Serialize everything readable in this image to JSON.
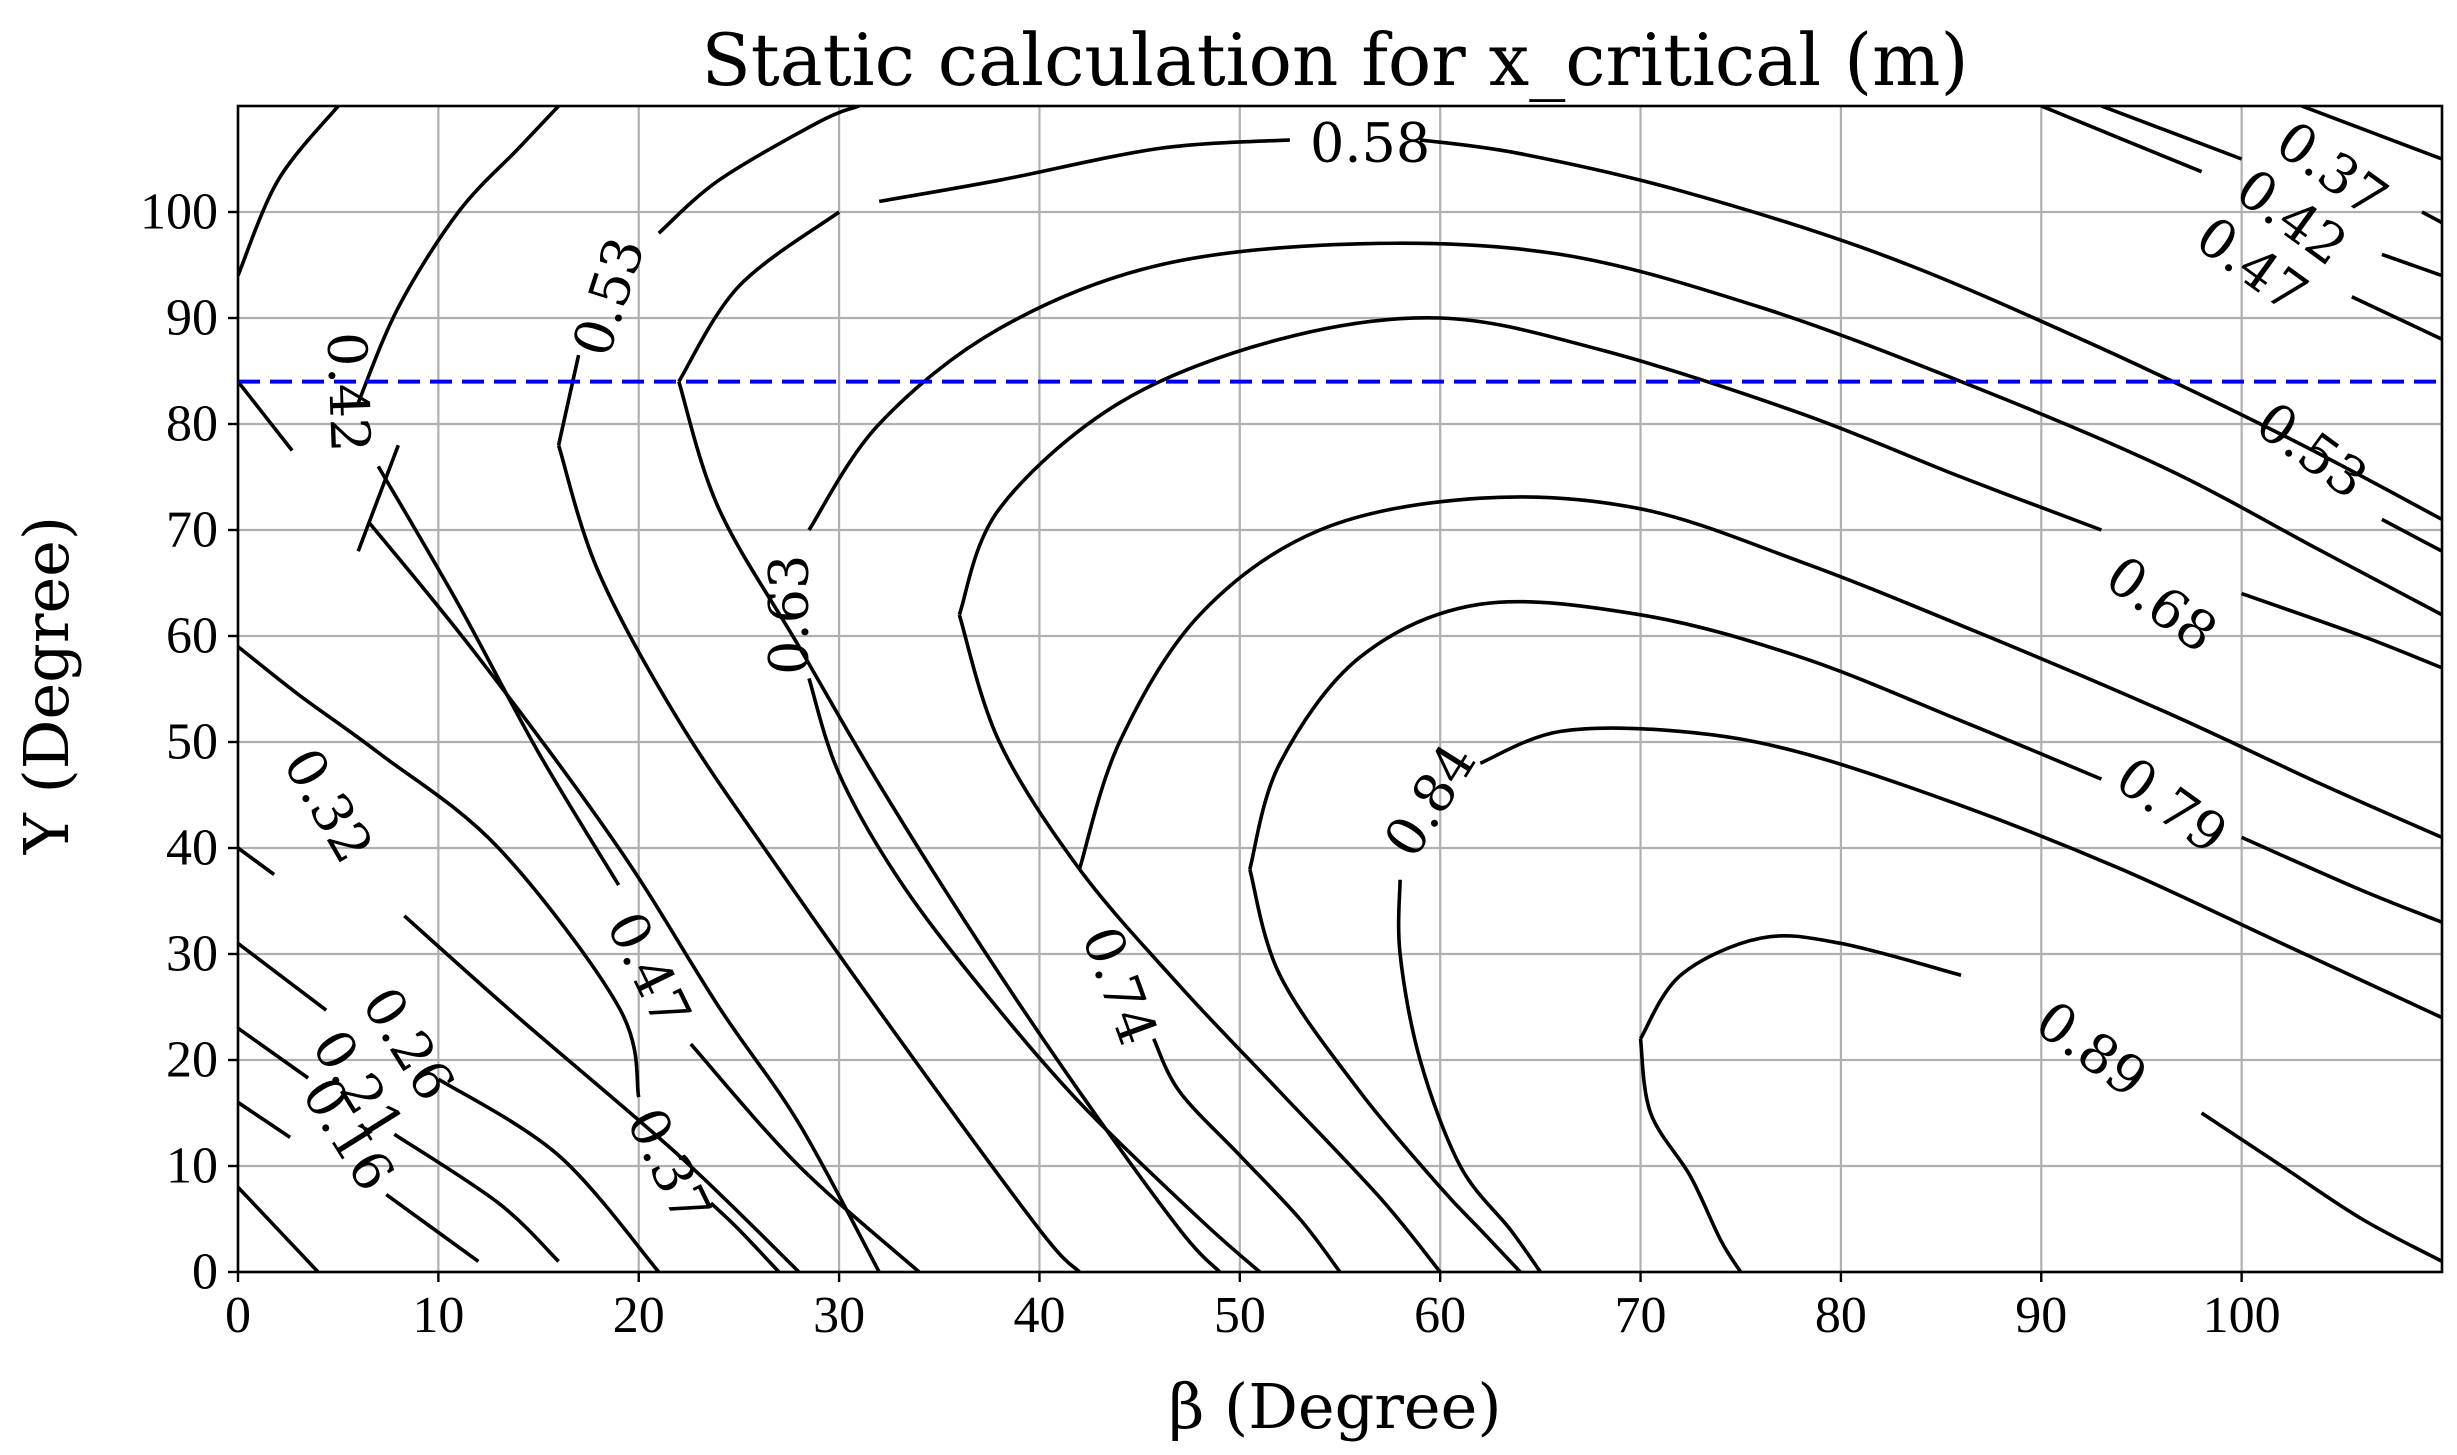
{
  "chart_data": {
    "type": "contour",
    "title": "Static calculation for x_critical (m)",
    "xlabel": "β (Degree)",
    "ylabel": "Υ (Degree)",
    "xlim": [
      0,
      110
    ],
    "ylim": [
      0,
      110
    ],
    "xticks": [
      0,
      10,
      20,
      30,
      40,
      50,
      60,
      70,
      80,
      90,
      100
    ],
    "yticks": [
      0,
      10,
      20,
      30,
      40,
      50,
      60,
      70,
      80,
      90,
      100
    ],
    "grid": true,
    "reference_line": {
      "orientation": "horizontal",
      "y": 84,
      "style": "dashed",
      "color": "#0000ee"
    },
    "contour_labels": [
      {
        "text": "0.58",
        "x": 56.5,
        "y": 106.5,
        "rotation": 0
      },
      {
        "text": "0.53",
        "x": 18.5,
        "y": 92,
        "rotation": -72
      },
      {
        "text": "0.42",
        "x": 5.5,
        "y": 83,
        "rotation": 88
      },
      {
        "text": "0.63",
        "x": 27.5,
        "y": 62,
        "rotation": -90
      },
      {
        "text": "0.37",
        "x": 104.5,
        "y": 104,
        "rotation": 36
      },
      {
        "text": "0.42",
        "x": 102.5,
        "y": 99.5,
        "rotation": 36
      },
      {
        "text": "0.47",
        "x": 100.5,
        "y": 95,
        "rotation": 36
      },
      {
        "text": "0.53",
        "x": 103.5,
        "y": 77.5,
        "rotation": 36
      },
      {
        "text": "0.68",
        "x": 96,
        "y": 63,
        "rotation": 36
      },
      {
        "text": "0.79",
        "x": 96.5,
        "y": 44,
        "rotation": 36
      },
      {
        "text": "0.84",
        "x": 59.5,
        "y": 44.5,
        "rotation": -58
      },
      {
        "text": "0.89",
        "x": 92.5,
        "y": 21,
        "rotation": 36
      },
      {
        "text": "0.74",
        "x": 44,
        "y": 27,
        "rotation": 70
      },
      {
        "text": "0.47",
        "x": 20.5,
        "y": 28.5,
        "rotation": 64
      },
      {
        "text": "0.37",
        "x": 21.5,
        "y": 10,
        "rotation": 64
      },
      {
        "text": "0.32",
        "x": 4.5,
        "y": 44,
        "rotation": 60
      },
      {
        "text": "0.26",
        "x": 8.5,
        "y": 21.5,
        "rotation": 58
      },
      {
        "text": "0.21",
        "x": 6,
        "y": 17.5,
        "rotation": 58
      },
      {
        "text": "0.16",
        "x": 5.5,
        "y": 13,
        "rotation": 58
      }
    ],
    "contours": [
      {
        "level": "0.16",
        "points": [
          [
            0,
            8
          ],
          [
            4,
            0
          ]
        ]
      },
      {
        "level": "0.16",
        "points": [
          [
            0,
            16
          ],
          [
            2.6,
            12.7
          ]
        ]
      },
      {
        "level": "0.16",
        "points": [
          [
            7.4,
            7.3
          ],
          [
            12,
            1
          ]
        ]
      },
      {
        "level": "0.21",
        "points": [
          [
            0,
            23
          ],
          [
            3.5,
            18.3
          ]
        ]
      },
      {
        "level": "0.21",
        "points": [
          [
            7.8,
            13
          ],
          [
            13,
            6.5
          ],
          [
            16,
            1
          ]
        ]
      },
      {
        "level": "0.26",
        "points": [
          [
            0,
            31
          ],
          [
            4.4,
            24.7
          ]
        ]
      },
      {
        "level": "0.26",
        "points": [
          [
            10,
            18.2
          ],
          [
            16,
            11
          ],
          [
            21,
            0
          ]
        ]
      },
      {
        "level": "0.32",
        "points": [
          [
            0,
            40
          ],
          [
            1.8,
            37.5
          ]
        ]
      },
      {
        "level": "0.32",
        "points": [
          [
            8.3,
            33.6
          ],
          [
            14,
            24
          ],
          [
            22,
            11
          ],
          [
            28,
            0
          ]
        ]
      },
      {
        "level": "0.37",
        "points": [
          [
            0,
            59
          ],
          [
            3,
            54.5
          ],
          [
            7,
            49
          ],
          [
            13,
            40
          ],
          [
            19,
            25
          ],
          [
            20,
            16.5
          ]
        ]
      },
      {
        "level": "0.37",
        "points": [
          [
            23.6,
            6.5
          ],
          [
            25,
            4
          ],
          [
            27,
            0
          ]
        ]
      },
      {
        "level": "0.42",
        "points": [
          [
            0,
            94
          ],
          [
            2,
            103
          ],
          [
            5,
            110
          ]
        ]
      },
      {
        "level": "0.42",
        "points": [
          [
            0,
            84
          ],
          [
            2.7,
            77.5
          ]
        ]
      },
      {
        "level": "0.42",
        "points": [
          [
            6.5,
            70.8
          ],
          [
            12,
            58
          ],
          [
            19,
            40
          ],
          [
            24,
            25
          ],
          [
            28,
            14
          ],
          [
            32,
            0
          ]
        ]
      },
      {
        "level": "0.47",
        "points": [
          [
            6,
            82
          ],
          [
            8,
            91
          ],
          [
            11,
            100
          ],
          [
            14,
            106
          ],
          [
            16,
            110
          ]
        ]
      },
      {
        "level": "0.47",
        "points": [
          [
            6,
            68
          ],
          [
            8,
            78
          ]
        ]
      },
      {
        "level": "0.47",
        "points": [
          [
            7,
            76
          ],
          [
            11,
            63
          ],
          [
            15,
            49
          ],
          [
            19,
            36.5
          ]
        ]
      },
      {
        "level": "0.47",
        "points": [
          [
            22.6,
            21.5
          ],
          [
            28,
            10
          ],
          [
            34,
            0
          ]
        ]
      },
      {
        "level": "0.53",
        "points": [
          [
            16,
            78
          ],
          [
            17,
            86.5
          ]
        ]
      },
      {
        "level": "0.53",
        "points": [
          [
            21,
            98
          ],
          [
            24,
            103
          ],
          [
            29,
            108.5
          ],
          [
            31,
            110
          ]
        ]
      },
      {
        "level": "0.53",
        "points": [
          [
            16,
            78
          ],
          [
            18,
            66
          ],
          [
            22,
            52
          ],
          [
            27,
            38
          ],
          [
            33,
            22
          ],
          [
            40,
            4
          ],
          [
            42,
            0
          ]
        ]
      },
      {
        "level": "0.58",
        "points": [
          [
            22,
            84
          ],
          [
            25,
            93
          ],
          [
            30,
            100
          ]
        ]
      },
      {
        "level": "0.58",
        "points": [
          [
            22,
            84
          ],
          [
            24,
            72
          ],
          [
            28,
            59
          ],
          [
            32,
            46
          ],
          [
            37,
            31
          ],
          [
            42,
            17
          ],
          [
            47,
            4
          ],
          [
            49,
            0
          ]
        ]
      },
      {
        "level": "0.58",
        "points": [
          [
            59,
            106.8
          ],
          [
            64,
            105.5
          ],
          [
            72,
            102
          ],
          [
            82,
            96
          ],
          [
            92,
            88
          ],
          [
            102,
            79
          ],
          [
            110,
            71
          ]
        ]
      },
      {
        "level": "0.58",
        "points": [
          [
            52.5,
            106.8
          ],
          [
            46,
            106
          ],
          [
            38,
            103
          ],
          [
            32,
            101
          ]
        ]
      },
      {
        "level": "0.63",
        "points": [
          [
            28.5,
            70
          ],
          [
            32,
            80
          ],
          [
            38,
            89
          ],
          [
            46,
            95
          ],
          [
            56,
            97
          ],
          [
            66,
            96
          ],
          [
            76,
            91
          ],
          [
            86,
            84
          ],
          [
            96,
            76
          ],
          [
            104,
            68
          ],
          [
            110,
            62
          ]
        ]
      },
      {
        "level": "0.63",
        "points": [
          [
            28.5,
            56
          ],
          [
            30,
            47
          ],
          [
            33,
            37
          ],
          [
            37,
            27
          ],
          [
            42,
            16
          ],
          [
            48,
            5
          ],
          [
            51,
            0
          ]
        ]
      },
      {
        "level": "0.68",
        "points": [
          [
            36,
            62
          ],
          [
            38,
            72
          ],
          [
            44,
            82
          ],
          [
            52,
            88
          ],
          [
            60,
            90
          ],
          [
            68,
            87
          ],
          [
            78,
            81
          ],
          [
            86,
            75
          ],
          [
            93,
            70
          ]
        ]
      },
      {
        "level": "0.68",
        "points": [
          [
            100,
            64
          ],
          [
            106,
            60
          ],
          [
            110,
            57
          ]
        ]
      },
      {
        "level": "0.68",
        "points": [
          [
            36,
            62
          ],
          [
            38,
            50
          ],
          [
            42,
            38
          ],
          [
            47,
            27
          ],
          [
            52,
            17
          ],
          [
            57,
            7
          ],
          [
            60,
            0
          ]
        ]
      },
      {
        "level": "0.74",
        "points": [
          [
            42,
            38
          ],
          [
            44,
            50
          ],
          [
            48,
            62
          ],
          [
            54,
            70
          ],
          [
            62,
            73
          ],
          [
            70,
            72
          ],
          [
            78,
            67
          ],
          [
            86,
            61
          ],
          [
            96,
            53
          ],
          [
            104,
            46
          ],
          [
            110,
            41
          ]
        ]
      },
      {
        "level": "0.74",
        "points": [
          [
            45.7,
            22
          ],
          [
            47,
            17
          ],
          [
            50,
            11
          ],
          [
            53,
            5
          ],
          [
            55,
            0
          ]
        ]
      },
      {
        "level": "0.79",
        "points": [
          [
            50.5,
            38
          ],
          [
            52,
            48
          ],
          [
            56,
            58
          ],
          [
            62,
            63
          ],
          [
            70,
            62
          ],
          [
            78,
            58
          ],
          [
            86,
            52
          ],
          [
            93,
            46.5
          ]
        ]
      },
      {
        "level": "0.79",
        "points": [
          [
            100,
            41
          ],
          [
            106,
            36
          ],
          [
            110,
            33
          ]
        ]
      },
      {
        "level": "0.79",
        "points": [
          [
            50.5,
            38
          ],
          [
            52,
            28
          ],
          [
            56,
            17
          ],
          [
            60,
            8
          ],
          [
            62,
            4
          ],
          [
            64,
            0
          ]
        ]
      },
      {
        "level": "0.84",
        "points": [
          [
            58,
            37
          ],
          [
            58,
            30
          ],
          [
            59,
            20
          ],
          [
            61,
            10
          ],
          [
            63.5,
            4
          ],
          [
            65,
            0
          ]
        ]
      },
      {
        "level": "0.84",
        "points": [
          [
            62,
            48
          ],
          [
            66,
            51
          ],
          [
            72,
            51
          ],
          [
            78,
            49
          ],
          [
            86,
            44
          ],
          [
            94,
            38
          ],
          [
            102,
            31
          ],
          [
            110,
            24
          ]
        ]
      },
      {
        "level": "0.89",
        "points": [
          [
            70,
            22
          ],
          [
            70.5,
            15
          ],
          [
            72.5,
            9
          ],
          [
            74,
            3
          ],
          [
            75,
            0
          ]
        ]
      },
      {
        "level": "0.89",
        "points": [
          [
            70,
            22
          ],
          [
            72,
            28
          ],
          [
            76,
            31.5
          ],
          [
            80,
            31
          ],
          [
            86,
            28
          ]
        ]
      },
      {
        "level": "0.89",
        "points": [
          [
            98,
            15
          ],
          [
            102,
            10
          ],
          [
            106,
            5
          ],
          [
            110,
            1
          ]
        ]
      },
      {
        "level": "0.53",
        "points": [
          [
            107,
            71
          ],
          [
            110,
            68
          ]
        ]
      },
      {
        "level": "0.47",
        "points": [
          [
            105.5,
            92
          ],
          [
            110,
            88
          ]
        ]
      },
      {
        "level": "0.42",
        "points": [
          [
            90,
            110
          ],
          [
            98,
            103.8
          ]
        ]
      },
      {
        "level": "0.42",
        "points": [
          [
            107,
            96
          ],
          [
            110,
            94
          ]
        ]
      },
      {
        "level": "0.37",
        "points": [
          [
            93,
            110
          ],
          [
            100,
            105
          ]
        ]
      },
      {
        "level": "0.37",
        "points": [
          [
            109,
            100
          ],
          [
            110,
            99
          ]
        ]
      },
      {
        "level": "0.32",
        "points": [
          [
            103,
            110
          ],
          [
            110,
            105
          ]
        ]
      }
    ]
  }
}
